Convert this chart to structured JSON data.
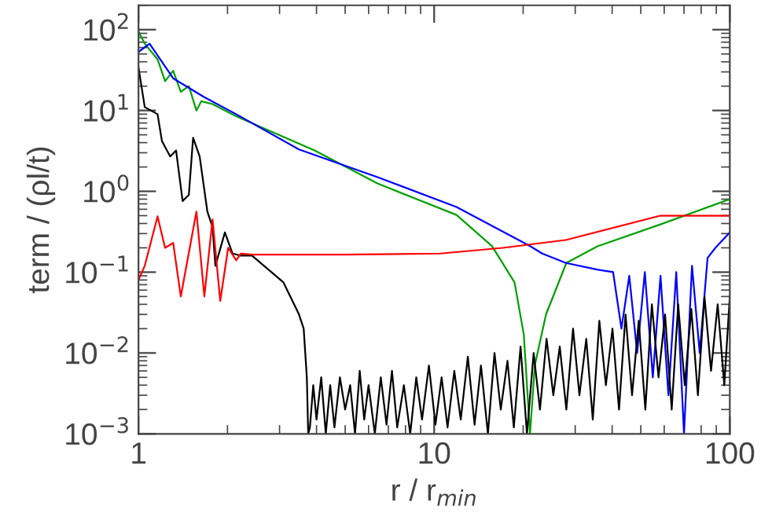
{
  "chart_data": {
    "type": "line",
    "xlabel": "r / r$_{min}$",
    "ylabel": "term / (ρl/t)",
    "log": "xy",
    "grid": false,
    "legend": false,
    "marker": "none",
    "line_style": "solid",
    "xlim": [
      1,
      100
    ],
    "ylim": [
      0.001,
      200
    ],
    "xticks": [
      1,
      10,
      100
    ],
    "yticks": [
      {
        "value": 0.001,
        "label": "10$^{−3}$"
      },
      {
        "value": 0.01,
        "label": "10$^{−2}$"
      },
      {
        "value": 0.1,
        "label": "10$^{−1}$"
      },
      {
        "value": 1,
        "label": "10$^{0}$"
      },
      {
        "value": 10,
        "label": "10$^{1}$"
      },
      {
        "value": 100,
        "label": "10$^{2}$"
      }
    ],
    "series": [
      {
        "color": "#00a000",
        "x": [
          1.0,
          1.05,
          1.16,
          1.23,
          1.31,
          1.39,
          1.48,
          1.57,
          1.63,
          1.78,
          2.14,
          3.94,
          6.43,
          11.9,
          15.7,
          18.7,
          20.1,
          21.1,
          21.9,
          23.9,
          28.0,
          35.8,
          58.3,
          100
        ],
        "values": [
          95,
          67,
          43,
          23,
          31,
          17,
          20,
          10,
          13,
          12,
          8.5,
          3.2,
          1.25,
          0.51,
          0.21,
          0.075,
          0.017,
          0.001,
          0.007,
          0.03,
          0.13,
          0.21,
          0.39,
          0.8
        ]
      },
      {
        "color": "#0000ff",
        "x": [
          1.0,
          1.09,
          1.31,
          1.67,
          2.14,
          3.49,
          6.43,
          11.9,
          21.1,
          23.2,
          27.9,
          35.8,
          40.3,
          43.0,
          45.7,
          48.6,
          51.6,
          54.9,
          58.3,
          62.0,
          65.9,
          70.0,
          74.5,
          79.1,
          84.1,
          89.4,
          100
        ],
        "values": [
          53,
          67,
          25,
          14.6,
          9,
          3.3,
          1.5,
          0.64,
          0.21,
          0.17,
          0.13,
          0.107,
          0.1,
          0.02,
          0.09,
          0.01,
          0.1,
          0.005,
          0.09,
          0.003,
          0.1,
          0.001,
          0.12,
          0.01,
          0.15,
          0.2,
          0.31
        ]
      },
      {
        "color": "#000000",
        "x": [
          1.0,
          1.05,
          1.16,
          1.2,
          1.28,
          1.34,
          1.41,
          1.48,
          1.53,
          1.61,
          1.71,
          1.78,
          1.82,
          1.96,
          2.08,
          2.22,
          2.42,
          3.09,
          3.49,
          3.62,
          3.71,
          3.75,
          3.8,
          3.9,
          4.0,
          4.15,
          4.3,
          4.45,
          4.6,
          4.8,
          5.0,
          5.2,
          5.4,
          5.6,
          5.8,
          6.0,
          6.3,
          6.6,
          6.9,
          7.2,
          7.5,
          7.9,
          8.3,
          8.7,
          9.1,
          9.6,
          10.1,
          10.6,
          11.1,
          11.7,
          12.3,
          13.0,
          13.7,
          14.4,
          15.2,
          16.0,
          16.8,
          17.7,
          18.6,
          19.6,
          20.6,
          21.7,
          22.8,
          24.0,
          25.3,
          26.6,
          28.0,
          29.5,
          31.0,
          32.7,
          34.4,
          36.2,
          38.1,
          40.1,
          42.2,
          44.4,
          46.7,
          49.2,
          51.8,
          54.5,
          57.4,
          60.4,
          63.6,
          66.9,
          70.4,
          74.1,
          78.0,
          82.1,
          86.4,
          91.0,
          95.8,
          100
        ],
        "values": [
          34,
          11,
          9,
          4.2,
          2.7,
          3.2,
          0.76,
          0.9,
          4.6,
          2.7,
          0.56,
          0.36,
          0.12,
          0.31,
          0.17,
          0.16,
          0.16,
          0.075,
          0.03,
          0.02,
          0.005,
          0.001,
          0.0012,
          0.004,
          0.0015,
          0.005,
          0.001,
          0.004,
          0.0012,
          0.005,
          0.002,
          0.004,
          0.001,
          0.006,
          0.0015,
          0.004,
          0.001,
          0.005,
          0.0013,
          0.006,
          0.0012,
          0.004,
          0.001,
          0.005,
          0.0015,
          0.007,
          0.0013,
          0.005,
          0.0012,
          0.006,
          0.0015,
          0.009,
          0.0013,
          0.007,
          0.001,
          0.01,
          0.002,
          0.008,
          0.0012,
          0.012,
          0.001,
          0.01,
          0.002,
          0.015,
          0.003,
          0.012,
          0.002,
          0.02,
          0.003,
          0.015,
          0.0015,
          0.025,
          0.004,
          0.02,
          0.002,
          0.03,
          0.003,
          0.025,
          0.002,
          0.04,
          0.005,
          0.03,
          0.002,
          0.04,
          0.004,
          0.035,
          0.003,
          0.05,
          0.006,
          0.04,
          0.004,
          0.05
        ]
      },
      {
        "color": "#ff0000",
        "x": [
          1.0,
          1.05,
          1.16,
          1.23,
          1.31,
          1.39,
          1.57,
          1.67,
          1.78,
          1.89,
          2.01,
          2.14,
          2.22,
          2.42,
          5.0,
          10.5,
          17.1,
          27.9,
          58.3,
          100
        ],
        "values": [
          0.08,
          0.12,
          0.49,
          0.2,
          0.23,
          0.05,
          0.56,
          0.05,
          0.45,
          0.044,
          0.2,
          0.14,
          0.17,
          0.165,
          0.165,
          0.17,
          0.2,
          0.25,
          0.5,
          0.5
        ]
      }
    ]
  }
}
